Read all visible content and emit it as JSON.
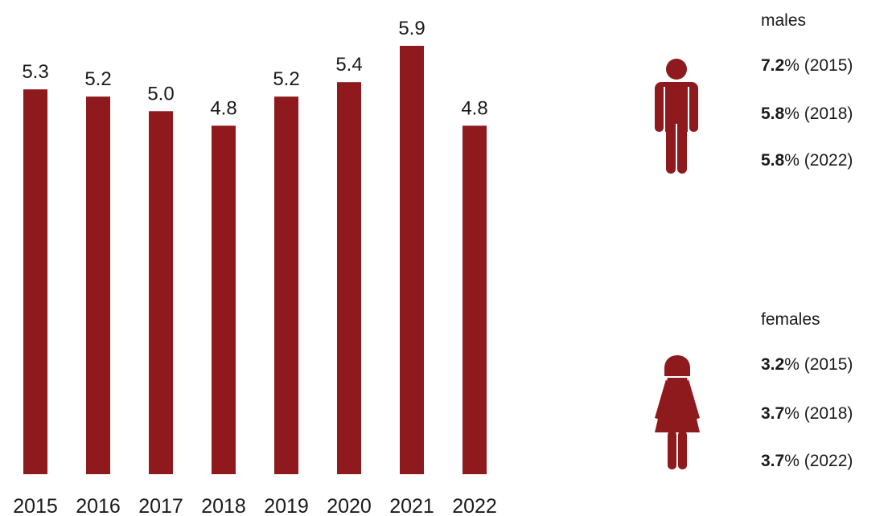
{
  "colors": {
    "bar": "#8e1a1e",
    "text": "#1a1a1a",
    "icon": "#8e1a1e"
  },
  "chart_data": {
    "type": "bar",
    "categories": [
      "2015",
      "2016",
      "2017",
      "2018",
      "2019",
      "2020",
      "2021",
      "2022"
    ],
    "values": [
      5.3,
      5.2,
      5.0,
      4.8,
      5.2,
      5.4,
      5.9,
      4.8
    ],
    "data_labels": [
      "5.3",
      "5.2",
      "5.0",
      "4.8",
      "5.2",
      "5.4",
      "5.9",
      "4.8"
    ],
    "ylim": [
      0,
      5.9
    ],
    "grid": false,
    "legend": "none"
  },
  "side_stats": {
    "males": {
      "title": "males",
      "icon": "male-figure-icon",
      "rows": [
        {
          "value": "7.2",
          "suffix": "% (2015)"
        },
        {
          "value": "5.8",
          "suffix": "% (2018)"
        },
        {
          "value": "5.8",
          "suffix": "% (2022)"
        }
      ]
    },
    "females": {
      "title": "females",
      "icon": "female-figure-icon",
      "rows": [
        {
          "value": "3.2",
          "suffix": "% (2015)"
        },
        {
          "value": "3.7",
          "suffix": "% (2018)"
        },
        {
          "value": "3.7",
          "suffix": "% (2022)"
        }
      ]
    }
  }
}
